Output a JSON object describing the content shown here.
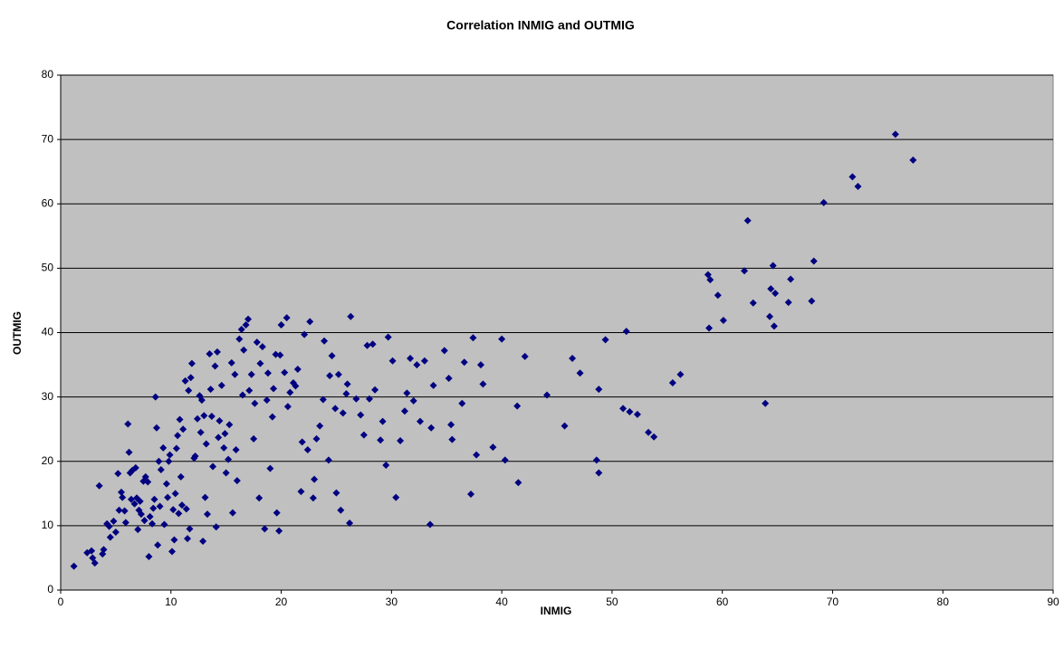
{
  "chart_data": {
    "type": "scatter",
    "title": "Correlation INMIG and OUTMIG",
    "x_label": "INMIG",
    "y_label": "OUTMIG",
    "x": [
      1.2,
      2.4,
      2.8,
      2.9,
      3.1,
      3.5,
      3.8,
      3.9,
      4.2,
      4.4,
      4.5,
      4.8,
      5.0,
      5.2,
      5.3,
      5.5,
      5.6,
      5.8,
      6.1,
      6.2,
      6.3,
      6.5,
      6.8,
      6.9,
      7.1,
      7.3,
      7.5,
      7.7,
      7.9,
      8.0,
      8.3,
      8.5,
      8.6,
      8.7,
      8.9,
      9.1,
      9.3,
      9.6,
      9.8,
      9.9,
      10.1,
      10.3,
      10.5,
      10.6,
      10.8,
      10.9,
      11.1,
      11.3,
      11.5,
      11.6,
      11.8,
      11.9,
      12.1,
      12.4,
      12.6,
      12.8,
      12.9,
      13.0,
      13.1,
      13.3,
      13.5,
      13.6,
      13.8,
      14.0,
      14.1,
      14.2,
      14.4,
      14.6,
      14.8,
      15.0,
      15.3,
      15.5,
      15.6,
      15.8,
      16.0,
      16.2,
      16.4,
      16.6,
      16.8,
      17.0,
      17.3,
      17.6,
      17.8,
      18.0,
      18.3,
      18.5,
      18.8,
      19.0,
      19.2,
      19.5,
      19.6,
      19.8,
      20.0,
      20.3,
      20.5,
      20.8,
      21.3,
      21.5,
      21.8,
      22.1,
      22.6,
      22.9,
      23.2,
      23.5,
      23.9,
      24.3,
      24.6,
      25.0,
      25.4,
      25.9,
      26.2,
      26.3,
      26.8,
      27.5,
      27.8,
      28.3,
      29.2,
      29.5,
      29.7,
      30.1,
      30.4,
      30.8,
      31.4,
      31.7,
      32.3,
      33.0,
      33.5,
      33.8,
      34.8,
      35.4,
      36.6,
      37.2,
      37.4,
      37.7,
      38.1,
      39.2,
      40.0,
      40.3,
      41.4,
      41.5,
      42.1,
      44.1,
      45.7,
      46.4,
      47.1,
      48.6,
      48.8,
      48.8,
      49.4,
      51.0,
      51.3,
      51.6,
      52.3,
      53.3,
      53.8,
      55.5,
      56.2,
      58.7,
      58.8,
      58.9,
      59.6,
      60.1,
      62.0,
      62.3,
      62.8,
      63.9,
      64.3,
      64.4,
      64.6,
      64.7,
      64.8,
      66.2,
      66.0,
      68.1,
      68.3,
      69.2,
      71.8,
      72.3,
      75.7,
      77.3,
      5.9,
      6.4,
      6.7,
      7.0,
      7.2,
      7.6,
      8.1,
      8.4,
      8.8,
      9.0,
      9.4,
      9.7,
      10.2,
      10.4,
      10.7,
      11.0,
      11.4,
      11.7,
      12.2,
      12.7,
      13.2,
      13.7,
      14.3,
      14.9,
      15.2,
      15.9,
      16.5,
      17.1,
      17.5,
      18.1,
      18.7,
      19.3,
      19.9,
      20.6,
      21.1,
      21.9,
      22.4,
      23.0,
      23.8,
      24.4,
      24.9,
      25.2,
      25.6,
      26.0,
      27.2,
      28.0,
      28.5,
      29.0,
      31.2,
      32.0,
      32.6,
      33.6,
      35.2,
      35.5,
      36.4,
      38.3
    ],
    "y": [
      3.7,
      5.8,
      6.1,
      5.0,
      4.2,
      16.2,
      5.6,
      6.3,
      10.3,
      9.9,
      8.2,
      10.7,
      9.0,
      18.1,
      12.4,
      15.2,
      14.4,
      12.3,
      25.8,
      21.4,
      18.2,
      18.6,
      19.0,
      14.3,
      12.4,
      11.8,
      16.9,
      17.6,
      16.8,
      5.2,
      10.3,
      14.1,
      30.0,
      25.2,
      20.0,
      18.7,
      22.1,
      16.5,
      20.0,
      21.0,
      6.0,
      7.8,
      22.0,
      24.0,
      26.5,
      17.6,
      25.0,
      32.5,
      8.0,
      31.0,
      33.0,
      35.2,
      20.5,
      26.6,
      30.2,
      29.5,
      7.6,
      27.1,
      14.4,
      11.8,
      36.7,
      31.2,
      19.2,
      34.8,
      9.8,
      37.0,
      26.3,
      31.8,
      22.1,
      18.2,
      25.7,
      35.3,
      12.0,
      33.5,
      17.0,
      39.0,
      40.5,
      37.3,
      41.2,
      42.1,
      33.5,
      29.0,
      38.5,
      14.3,
      37.8,
      9.5,
      33.7,
      18.9,
      26.9,
      36.6,
      12.0,
      9.2,
      41.2,
      33.8,
      42.3,
      30.7,
      31.7,
      34.3,
      15.3,
      39.7,
      41.7,
      14.3,
      23.5,
      25.5,
      38.7,
      20.2,
      36.4,
      15.1,
      12.4,
      30.5,
      10.4,
      42.5,
      29.7,
      24.1,
      38.0,
      38.2,
      26.2,
      19.4,
      39.3,
      35.6,
      14.4,
      23.2,
      30.6,
      36.0,
      35.0,
      35.6,
      10.2,
      31.8,
      37.2,
      25.7,
      35.4,
      14.9,
      39.2,
      21.0,
      35.0,
      22.2,
      39.0,
      20.2,
      28.6,
      16.7,
      36.3,
      30.3,
      25.5,
      36.0,
      33.7,
      20.2,
      31.2,
      18.2,
      38.9,
      28.2,
      40.2,
      27.7,
      27.3,
      24.5,
      23.8,
      32.2,
      33.5,
      49.0,
      40.7,
      48.2,
      45.8,
      41.9,
      49.6,
      57.4,
      44.6,
      29.0,
      42.5,
      46.8,
      50.4,
      41.0,
      46.1,
      48.3,
      44.7,
      44.9,
      51.1,
      60.2,
      64.2,
      62.7,
      70.8,
      66.8,
      10.5,
      14.1,
      13.4,
      9.4,
      13.8,
      10.8,
      11.4,
      12.7,
      7.0,
      13.0,
      10.2,
      14.4,
      12.5,
      15.0,
      11.9,
      13.2,
      12.6,
      9.5,
      20.8,
      24.5,
      22.7,
      27.0,
      23.7,
      24.3,
      20.3,
      21.8,
      30.3,
      31.0,
      23.5,
      35.2,
      29.5,
      31.3,
      36.5,
      28.5,
      32.2,
      23.0,
      21.8,
      17.2,
      29.6,
      33.3,
      28.2,
      33.5,
      27.5,
      32.0,
      27.2,
      29.7,
      31.1,
      23.3,
      27.8,
      29.4,
      26.2,
      25.2,
      32.9,
      23.4,
      29.0,
      32.0
    ],
    "color": "#000080",
    "plot_background": "#c0c0c0",
    "grid": true,
    "xlim": [
      0,
      90
    ],
    "xticks": [
      0,
      10,
      20,
      30,
      40,
      50,
      60,
      70,
      80,
      90
    ],
    "ylim": [
      0,
      80
    ],
    "yticks": [
      0,
      10,
      20,
      30,
      40,
      50,
      60,
      70,
      80
    ]
  }
}
